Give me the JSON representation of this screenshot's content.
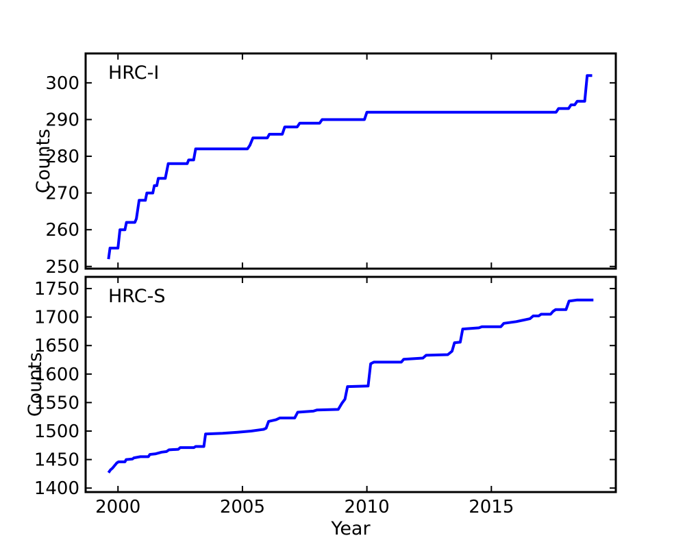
{
  "figure": {
    "background": "#ffffff",
    "line_color": "#0000ff",
    "axis_color": "#000000",
    "line_width": 4
  },
  "chart_data": [
    {
      "type": "line",
      "label": "HRC-I",
      "xlabel": "",
      "ylabel": "Counts",
      "xlim": [
        1998.7,
        2020.0
      ],
      "ylim": [
        249.4,
        308.0
      ],
      "xticks": [
        2000,
        2005,
        2010,
        2015
      ],
      "show_xtick_labels": false,
      "yticks": [
        250,
        260,
        270,
        280,
        290,
        300
      ],
      "grid": false,
      "legend": "none",
      "series": [
        {
          "name": "HRC-I",
          "color": "#0000ff",
          "points": [
            [
              1999.62,
              252
            ],
            [
              1999.68,
              255
            ],
            [
              2000.0,
              255
            ],
            [
              2000.08,
              260
            ],
            [
              2000.28,
              260
            ],
            [
              2000.34,
              262
            ],
            [
              2000.68,
              262
            ],
            [
              2000.74,
              263
            ],
            [
              2000.85,
              268
            ],
            [
              2001.1,
              268
            ],
            [
              2001.16,
              270
            ],
            [
              2001.4,
              270
            ],
            [
              2001.46,
              272
            ],
            [
              2001.56,
              272
            ],
            [
              2001.62,
              274
            ],
            [
              2001.9,
              274
            ],
            [
              2002.02,
              278
            ],
            [
              2002.78,
              278
            ],
            [
              2002.84,
              279
            ],
            [
              2003.04,
              279
            ],
            [
              2003.12,
              282
            ],
            [
              2005.2,
              282
            ],
            [
              2005.3,
              283
            ],
            [
              2005.42,
              285
            ],
            [
              2006.0,
              285
            ],
            [
              2006.08,
              286
            ],
            [
              2006.6,
              286
            ],
            [
              2006.7,
              288
            ],
            [
              2007.2,
              288
            ],
            [
              2007.3,
              289
            ],
            [
              2008.1,
              289
            ],
            [
              2008.2,
              290
            ],
            [
              2009.9,
              290
            ],
            [
              2010.0,
              292
            ],
            [
              2017.6,
              292
            ],
            [
              2017.7,
              293
            ],
            [
              2018.1,
              293
            ],
            [
              2018.2,
              294
            ],
            [
              2018.35,
              294
            ],
            [
              2018.45,
              295
            ],
            [
              2018.75,
              295
            ],
            [
              2018.85,
              302
            ],
            [
              2019.05,
              302
            ]
          ]
        }
      ]
    },
    {
      "type": "line",
      "label": "HRC-S",
      "xlabel": "Year",
      "ylabel": "Counts",
      "xlim": [
        1998.7,
        2020.0
      ],
      "ylim": [
        1393,
        1770.5
      ],
      "xticks": [
        2000,
        2005,
        2010,
        2015
      ],
      "show_xtick_labels": true,
      "yticks": [
        1400,
        1450,
        1500,
        1550,
        1600,
        1650,
        1700,
        1750
      ],
      "grid": false,
      "legend": "none",
      "series": [
        {
          "name": "HRC-S",
          "color": "#0000ff",
          "points": [
            [
              1999.62,
              1427
            ],
            [
              1999.7,
              1432
            ],
            [
              1999.78,
              1435
            ],
            [
              1999.95,
              1444
            ],
            [
              2000.02,
              1446
            ],
            [
              2000.28,
              1446
            ],
            [
              2000.33,
              1450
            ],
            [
              2000.58,
              1451
            ],
            [
              2000.64,
              1453
            ],
            [
              2000.9,
              1455
            ],
            [
              2001.22,
              1455
            ],
            [
              2001.28,
              1459
            ],
            [
              2001.5,
              1460
            ],
            [
              2001.75,
              1463
            ],
            [
              2001.95,
              1464
            ],
            [
              2002.05,
              1467
            ],
            [
              2002.42,
              1468
            ],
            [
              2002.5,
              1471
            ],
            [
              2003.05,
              1471
            ],
            [
              2003.12,
              1473
            ],
            [
              2003.45,
              1473
            ],
            [
              2003.52,
              1495
            ],
            [
              2004.2,
              1496
            ],
            [
              2004.8,
              1498
            ],
            [
              2005.35,
              1500
            ],
            [
              2005.85,
              1503
            ],
            [
              2005.95,
              1505
            ],
            [
              2006.05,
              1517
            ],
            [
              2006.35,
              1520
            ],
            [
              2006.5,
              1523
            ],
            [
              2007.1,
              1523
            ],
            [
              2007.22,
              1533
            ],
            [
              2007.85,
              1535
            ],
            [
              2008.0,
              1537
            ],
            [
              2008.85,
              1538
            ],
            [
              2009.0,
              1549
            ],
            [
              2009.12,
              1556
            ],
            [
              2009.22,
              1578
            ],
            [
              2010.05,
              1579
            ],
            [
              2010.15,
              1618
            ],
            [
              2010.28,
              1621
            ],
            [
              2011.38,
              1621
            ],
            [
              2011.48,
              1626
            ],
            [
              2012.25,
              1628
            ],
            [
              2012.38,
              1633
            ],
            [
              2013.25,
              1634
            ],
            [
              2013.42,
              1640
            ],
            [
              2013.52,
              1655
            ],
            [
              2013.75,
              1656
            ],
            [
              2013.85,
              1679
            ],
            [
              2014.5,
              1681
            ],
            [
              2014.62,
              1683
            ],
            [
              2015.38,
              1683
            ],
            [
              2015.5,
              1689
            ],
            [
              2016.0,
              1692
            ],
            [
              2016.55,
              1697
            ],
            [
              2016.68,
              1702
            ],
            [
              2016.9,
              1702
            ],
            [
              2017.0,
              1705
            ],
            [
              2017.38,
              1705
            ],
            [
              2017.48,
              1710
            ],
            [
              2017.58,
              1713
            ],
            [
              2018.0,
              1713
            ],
            [
              2018.12,
              1728
            ],
            [
              2018.45,
              1730
            ],
            [
              2019.1,
              1730
            ]
          ]
        }
      ]
    }
  ]
}
